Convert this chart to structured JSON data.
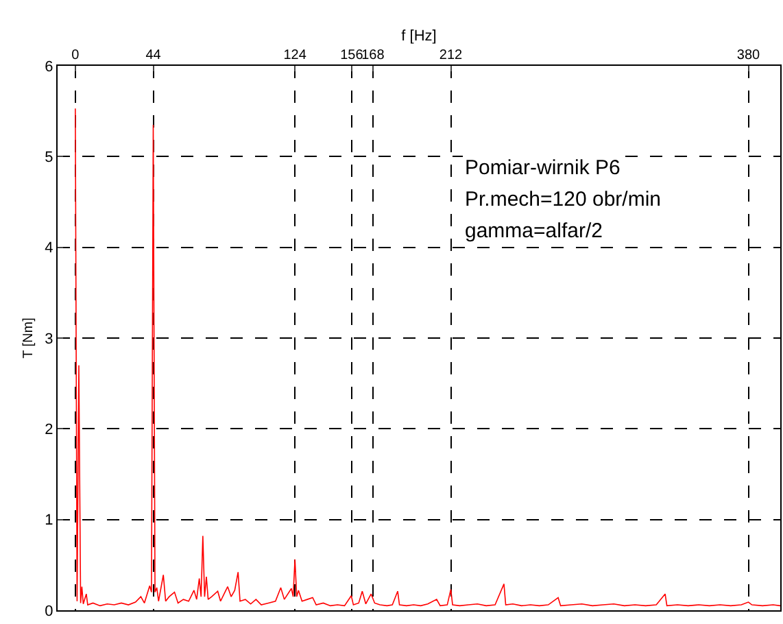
{
  "chart_data": {
    "type": "line",
    "xlabel": "f [Hz]",
    "ylabel": "T [Nm]",
    "xlim": [
      -10,
      398
    ],
    "ylim": [
      0,
      6
    ],
    "xticks": [
      0,
      44,
      124,
      156,
      168,
      212,
      380
    ],
    "yticks": [
      0,
      1,
      2,
      3,
      4,
      5,
      6
    ],
    "grid": true,
    "line_style": "solid",
    "annotations": [
      "Pomiar-wirnik P6",
      "Pr.mech=120 obr/min",
      "gamma=alfar/2"
    ],
    "series": [
      {
        "color": "#ff0000",
        "x": [
          0,
          1,
          2,
          3,
          3.7,
          4.5,
          6.2,
          7,
          10,
          14,
          18,
          22,
          26,
          30,
          34,
          37,
          39,
          42,
          43,
          44,
          45,
          46,
          47,
          49.7,
          51,
          53,
          56,
          58,
          61,
          64,
          67,
          68.5,
          70,
          71,
          72,
          73,
          74,
          75,
          77,
          80.4,
          82,
          84,
          86,
          88,
          90,
          91.9,
          93,
          96,
          99,
          102,
          105,
          109,
          113,
          116,
          118,
          122,
          123,
          124,
          125,
          126,
          128,
          131,
          134,
          136,
          140,
          144,
          148,
          152,
          155.8,
          157,
          160,
          162,
          164,
          167,
          169,
          172,
          176,
          179,
          182,
          183,
          187,
          191,
          195,
          199,
          204,
          206,
          210,
          212,
          213,
          217,
          222,
          227,
          232,
          237,
          242,
          243,
          247,
          252,
          257,
          262,
          267,
          272.6,
          274,
          280,
          286,
          292,
          298,
          304,
          310,
          316,
          322,
          328,
          333,
          334,
          340,
          346,
          352,
          358,
          364,
          370,
          376,
          380,
          382,
          388,
          394,
          398
        ],
        "values": [
          5.53,
          0.1,
          2.7,
          0.08,
          0.26,
          0.07,
          0.18,
          0.06,
          0.08,
          0.05,
          0.07,
          0.06,
          0.08,
          0.06,
          0.09,
          0.15,
          0.08,
          0.27,
          0.2,
          5.35,
          0.2,
          0.25,
          0.1,
          0.39,
          0.1,
          0.15,
          0.2,
          0.08,
          0.12,
          0.1,
          0.22,
          0.12,
          0.35,
          0.15,
          0.82,
          0.15,
          0.37,
          0.12,
          0.15,
          0.21,
          0.1,
          0.18,
          0.26,
          0.15,
          0.22,
          0.42,
          0.1,
          0.12,
          0.07,
          0.12,
          0.06,
          0.08,
          0.1,
          0.25,
          0.12,
          0.24,
          0.15,
          0.56,
          0.15,
          0.22,
          0.1,
          0.12,
          0.14,
          0.06,
          0.08,
          0.05,
          0.06,
          0.05,
          0.16,
          0.06,
          0.08,
          0.21,
          0.07,
          0.18,
          0.08,
          0.06,
          0.05,
          0.06,
          0.21,
          0.06,
          0.05,
          0.06,
          0.05,
          0.07,
          0.12,
          0.05,
          0.06,
          0.23,
          0.06,
          0.05,
          0.06,
          0.07,
          0.05,
          0.06,
          0.29,
          0.06,
          0.07,
          0.05,
          0.06,
          0.05,
          0.06,
          0.14,
          0.05,
          0.06,
          0.07,
          0.05,
          0.06,
          0.07,
          0.05,
          0.06,
          0.05,
          0.06,
          0.18,
          0.05,
          0.06,
          0.05,
          0.06,
          0.05,
          0.06,
          0.05,
          0.06,
          0.09,
          0.06,
          0.05,
          0.06,
          0.05
        ]
      }
    ]
  }
}
